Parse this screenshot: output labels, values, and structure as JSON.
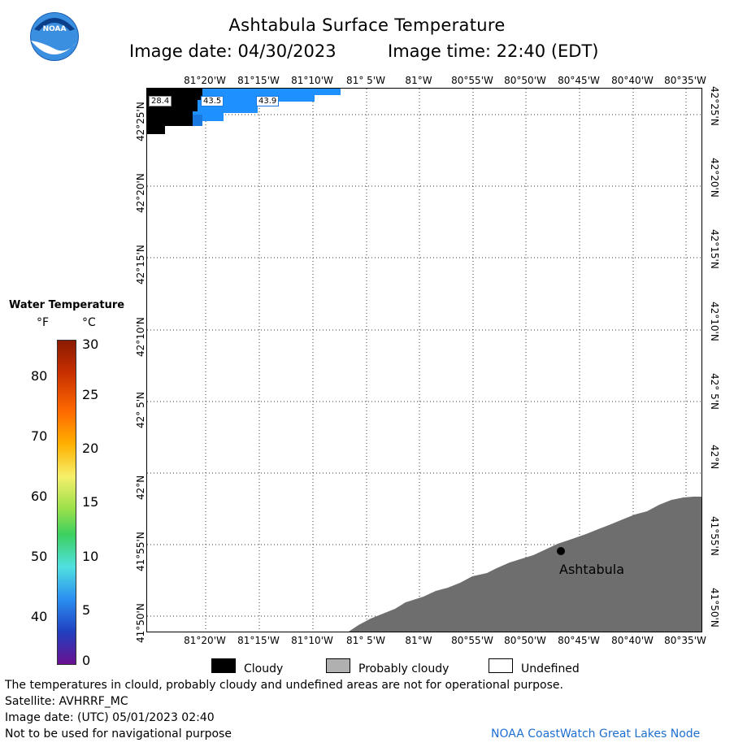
{
  "header": {
    "title": "Ashtabula Surface Temperature",
    "date_label": "Image date: 04/30/2023",
    "time_label": "Image time: 22:40 (EDT)",
    "logo_text": "NOAA"
  },
  "axes": {
    "longitudes": [
      "81°20'W",
      "81°15'W",
      "81°10'W",
      "81° 5'W",
      "81°W",
      "80°55'W",
      "80°50'W",
      "80°45'W",
      "80°40'W",
      "80°35'W"
    ],
    "latitudes": [
      "42°25'N",
      "42°20'N",
      "42°15'N",
      "42°10'N",
      "42° 5'N",
      "42°N",
      "41°55'N",
      "41°50'N"
    ]
  },
  "map": {
    "temperature_labels": [
      "28.4",
      "43.5",
      "43.9"
    ],
    "city": "Ashtabula",
    "colors": {
      "cloudy": "#000000",
      "land": "#6e6e6e",
      "water_temp": "#1e90ff",
      "water_temp_dark": "#1878e0"
    }
  },
  "color_scale": {
    "title": "Water Temperature",
    "unit_f": "°F",
    "unit_c": "°C",
    "f_ticks": [
      "80",
      "70",
      "60",
      "50",
      "40"
    ],
    "c_ticks": [
      "30",
      "25",
      "20",
      "15",
      "10",
      "5",
      "0"
    ]
  },
  "legend": {
    "cloudy": "Cloudy",
    "probably_cloudy": "Probably cloudy",
    "undefined": "Undefined"
  },
  "footer": {
    "disclaimer": "The temperatures in clould, probably cloudy and undefined areas are not for operational purpose.",
    "satellite": "Satellite: AVHRRF_MC",
    "utc_date": "Image date: (UTC) 05/01/2023  02:40",
    "nav_warning": "Not to be used for navigational purpose",
    "credit": "NOAA CoastWatch Great Lakes Node"
  }
}
